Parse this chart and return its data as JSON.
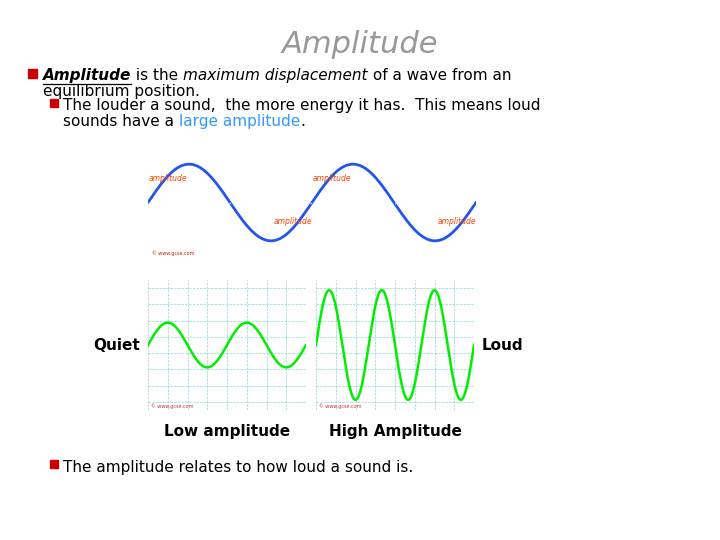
{
  "title": "Amplitude",
  "title_fontsize": 22,
  "title_color": "#999999",
  "background_color": "#ffffff",
  "bullet_color": "#cc0000",
  "bullet2_line1": "The louder a sound,  the more energy it has.  This means loud",
  "bullet3": "The amplitude relates to how loud a sound is.",
  "label_quiet": "Quiet",
  "label_loud": "Loud",
  "label_low": "Low amplitude",
  "label_high": "High Amplitude"
}
